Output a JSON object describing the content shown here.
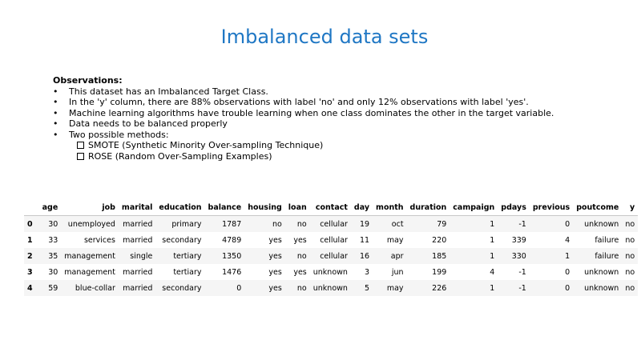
{
  "slide": {
    "title": "Imbalanced data sets",
    "observations_heading": "Observations:",
    "bullets": [
      "This dataset has an Imbalanced Target Class.",
      "In the 'y' column, there are 88% observations with label 'no' and only 12% observations with label 'yes'.",
      "Machine learning algorithms have trouble learning when one class dominates the other in the target variable.",
      "Data needs to be balanced properly",
      "Two possible methods:"
    ],
    "methods": [
      "SMOTE (Synthetic Minority Over-sampling Technique)",
      "ROSE (Random Over-Sampling Examples)"
    ]
  },
  "table": {
    "columns": [
      "age",
      "job",
      "marital",
      "education",
      "balance",
      "housing",
      "loan",
      "contact",
      "day",
      "month",
      "duration",
      "campaign",
      "pdays",
      "previous",
      "poutcome",
      "y"
    ],
    "rows": [
      {
        "index": "0",
        "cells": [
          "30",
          "unemployed",
          "married",
          "primary",
          "1787",
          "no",
          "no",
          "cellular",
          "19",
          "oct",
          "79",
          "1",
          "-1",
          "0",
          "unknown",
          "no"
        ]
      },
      {
        "index": "1",
        "cells": [
          "33",
          "services",
          "married",
          "secondary",
          "4789",
          "yes",
          "yes",
          "cellular",
          "11",
          "may",
          "220",
          "1",
          "339",
          "4",
          "failure",
          "no"
        ]
      },
      {
        "index": "2",
        "cells": [
          "35",
          "management",
          "single",
          "tertiary",
          "1350",
          "yes",
          "no",
          "cellular",
          "16",
          "apr",
          "185",
          "1",
          "330",
          "1",
          "failure",
          "no"
        ]
      },
      {
        "index": "3",
        "cells": [
          "30",
          "management",
          "married",
          "tertiary",
          "1476",
          "yes",
          "yes",
          "unknown",
          "3",
          "jun",
          "199",
          "4",
          "-1",
          "0",
          "unknown",
          "no"
        ]
      },
      {
        "index": "4",
        "cells": [
          "59",
          "blue-collar",
          "married",
          "secondary",
          "0",
          "yes",
          "no",
          "unknown",
          "5",
          "may",
          "226",
          "1",
          "-1",
          "0",
          "unknown",
          "no"
        ]
      }
    ]
  }
}
